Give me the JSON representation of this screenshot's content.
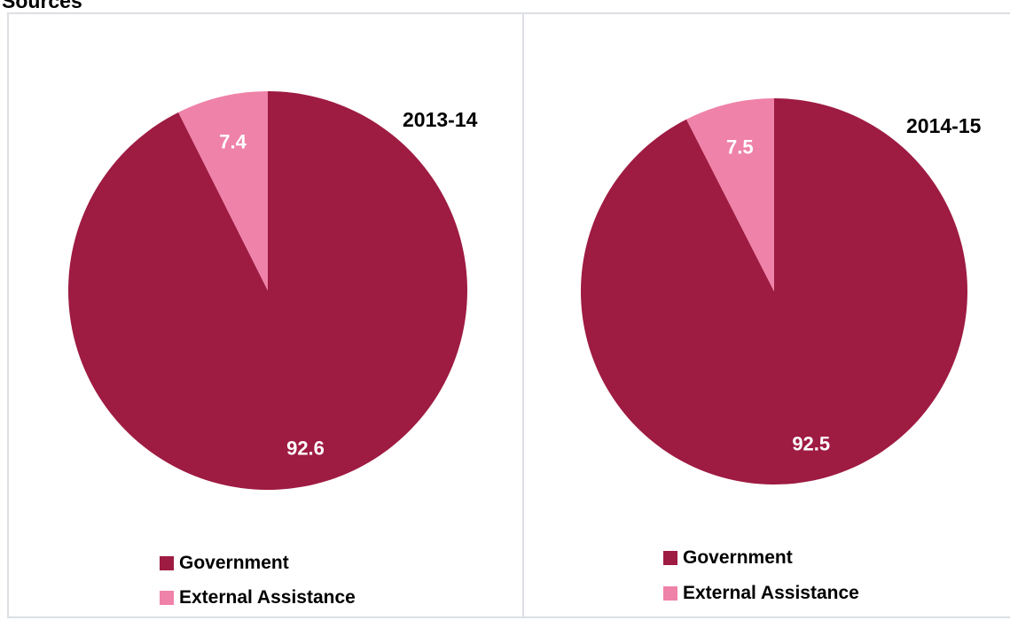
{
  "heading": "Sources",
  "colors": {
    "government": "#9e1b42",
    "external": "#ef82a8",
    "label": "#ffffff",
    "border": "#dcdfe3"
  },
  "chart_data": [
    {
      "type": "pie",
      "title": "2013-14",
      "categories": [
        "Government",
        "External Assistance"
      ],
      "values": [
        92.6,
        7.4
      ],
      "data_labels": [
        "92.6",
        "7.4"
      ],
      "legend": "bottom"
    },
    {
      "type": "pie",
      "title": "2014-15",
      "categories": [
        "Government",
        "External Assistance"
      ],
      "values": [
        92.5,
        7.5
      ],
      "data_labels": [
        "92.5",
        "7.5"
      ],
      "legend": "bottom"
    }
  ]
}
